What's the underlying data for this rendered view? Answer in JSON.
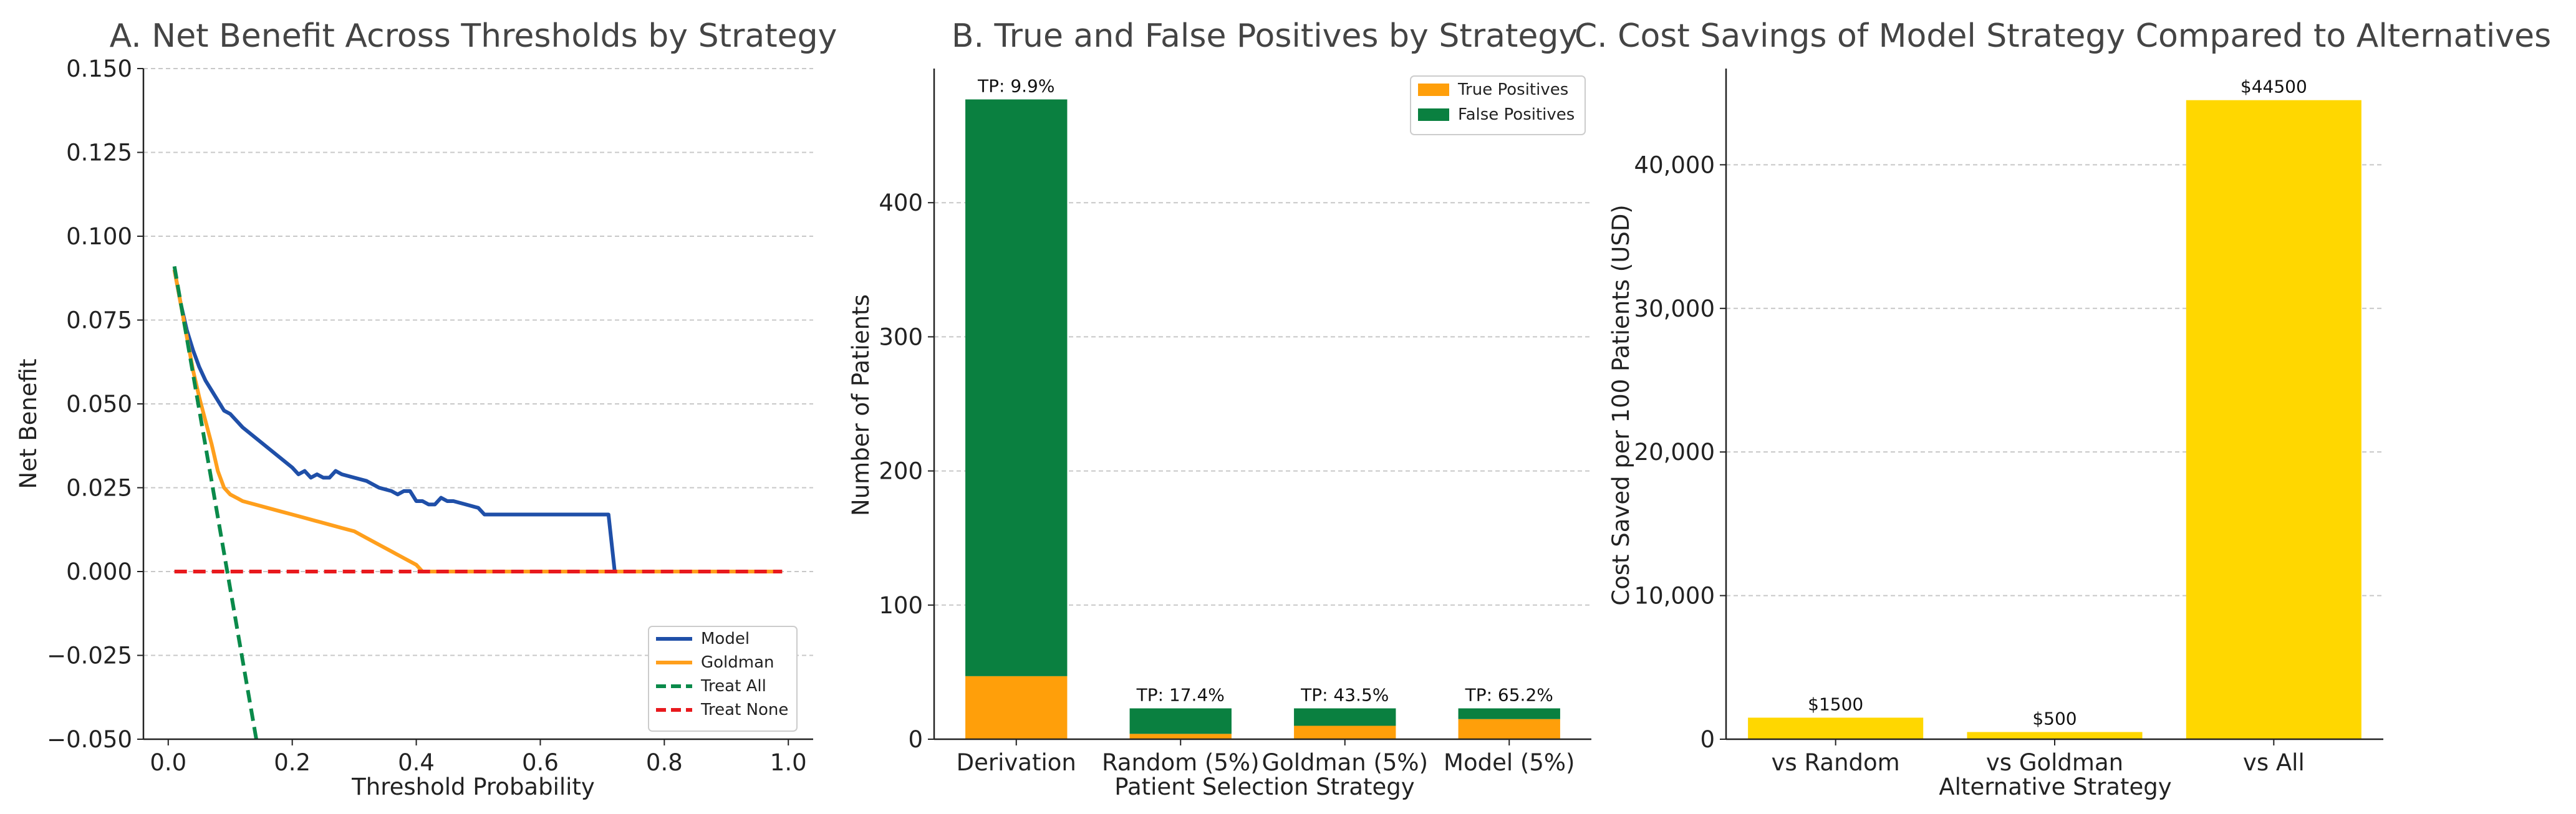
{
  "figure": {
    "background": "#ffffff",
    "axis_color": "#222222",
    "grid_color": "#c8c8c8"
  },
  "chart_data": [
    {
      "type": "line",
      "title": "A. Net Benefit Across Thresholds by Strategy",
      "xlabel": "Threshold Probability",
      "ylabel": "Net Benefit",
      "xlim": [
        -0.04,
        1.04
      ],
      "ylim": [
        -0.05,
        0.15
      ],
      "xticks": [
        0.0,
        0.2,
        0.4,
        0.6,
        0.8,
        1.0
      ],
      "xtick_labels": [
        "0.0",
        "0.2",
        "0.4",
        "0.6",
        "0.8",
        "1.0"
      ],
      "yticks": [
        -0.05,
        -0.025,
        0.0,
        0.025,
        0.05,
        0.075,
        0.1,
        0.125,
        0.15
      ],
      "ytick_labels": [
        "−0.050",
        "−0.025",
        "0.000",
        "0.025",
        "0.050",
        "0.075",
        "0.100",
        "0.125",
        "0.150"
      ],
      "grid": "y",
      "legend_position": "lower-right",
      "series": [
        {
          "name": "Model",
          "color": "#1f4fa8",
          "style": "solid",
          "x": [
            0.01,
            0.02,
            0.03,
            0.04,
            0.05,
            0.06,
            0.07,
            0.08,
            0.09,
            0.1,
            0.12,
            0.14,
            0.16,
            0.18,
            0.2,
            0.21,
            0.22,
            0.23,
            0.24,
            0.25,
            0.26,
            0.27,
            0.28,
            0.3,
            0.32,
            0.34,
            0.36,
            0.37,
            0.38,
            0.39,
            0.4,
            0.41,
            0.42,
            0.43,
            0.44,
            0.45,
            0.46,
            0.48,
            0.5,
            0.51,
            0.55,
            0.6,
            0.65,
            0.7,
            0.71,
            0.72
          ],
          "y": [
            0.09,
            0.08,
            0.072,
            0.066,
            0.061,
            0.057,
            0.054,
            0.051,
            0.048,
            0.047,
            0.043,
            0.04,
            0.037,
            0.034,
            0.031,
            0.029,
            0.03,
            0.028,
            0.029,
            0.028,
            0.028,
            0.03,
            0.029,
            0.028,
            0.027,
            0.025,
            0.024,
            0.023,
            0.024,
            0.024,
            0.021,
            0.021,
            0.02,
            0.02,
            0.022,
            0.021,
            0.021,
            0.02,
            0.019,
            0.017,
            0.017,
            0.017,
            0.017,
            0.017,
            0.017,
            0.0
          ]
        },
        {
          "name": "Goldman",
          "color": "#ff9f1c",
          "style": "solid",
          "x": [
            0.01,
            0.02,
            0.03,
            0.04,
            0.05,
            0.06,
            0.07,
            0.08,
            0.09,
            0.1,
            0.11,
            0.12,
            0.14,
            0.16,
            0.18,
            0.2,
            0.22,
            0.24,
            0.26,
            0.28,
            0.3,
            0.32,
            0.34,
            0.36,
            0.38,
            0.4,
            0.41,
            0.45,
            0.5,
            0.6,
            0.7,
            0.8,
            0.9,
            0.99
          ],
          "y": [
            0.09,
            0.08,
            0.07,
            0.06,
            0.052,
            0.045,
            0.038,
            0.03,
            0.025,
            0.023,
            0.022,
            0.021,
            0.02,
            0.019,
            0.018,
            0.017,
            0.016,
            0.015,
            0.014,
            0.013,
            0.012,
            0.01,
            0.008,
            0.006,
            0.004,
            0.002,
            0.0,
            0.0,
            0.0,
            0.0,
            0.0,
            0.0,
            0.0,
            0.0
          ]
        },
        {
          "name": "Treat All",
          "color": "#0a8a4a",
          "style": "dashed",
          "x": [
            0.01,
            0.142
          ],
          "y": [
            0.091,
            -0.05
          ]
        },
        {
          "name": "Treat None",
          "color": "#e8191d",
          "style": "dashed",
          "x": [
            0.01,
            0.99
          ],
          "y": [
            0.0,
            0.0
          ]
        }
      ]
    },
    {
      "type": "bar",
      "stacked": true,
      "title": "B. True and False Positives by Strategy",
      "xlabel": "Patient Selection Strategy",
      "ylabel": "Number of Patients",
      "categories": [
        "Derivation",
        "Random (5%)",
        "Goldman (5%)",
        "Model (5%)"
      ],
      "ylim": [
        0,
        500
      ],
      "yticks": [
        0,
        100,
        200,
        300,
        400
      ],
      "ytick_labels": [
        "0",
        "100",
        "200",
        "300",
        "400"
      ],
      "grid": "y",
      "legend_position": "top-right",
      "series": [
        {
          "name": "True Positives",
          "color": "#ff9f0a",
          "values": [
            47,
            4,
            10,
            15
          ]
        },
        {
          "name": "False Positives",
          "color": "#0a8040",
          "values": [
            430,
            19,
            13,
            8
          ]
        }
      ],
      "bar_labels": [
        "TP: 9.9%",
        "TP: 17.4%",
        "TP: 43.5%",
        "TP: 65.2%"
      ]
    },
    {
      "type": "bar",
      "title": "C. Cost Savings of Model Strategy Compared to Alternatives",
      "xlabel": "Alternative Strategy",
      "ylabel": "Cost Saved per 100 Patients (USD)",
      "categories": [
        "vs Random",
        "vs Goldman",
        "vs All"
      ],
      "values": [
        1500,
        500,
        44500
      ],
      "color": "#ffd700",
      "ylim": [
        0,
        46700
      ],
      "yticks": [
        0,
        10000,
        20000,
        30000,
        40000
      ],
      "ytick_labels": [
        "0",
        "10,000",
        "20,000",
        "30,000",
        "40,000"
      ],
      "grid": "y",
      "bar_labels": [
        "$1500",
        "$500",
        "$44500"
      ]
    }
  ]
}
